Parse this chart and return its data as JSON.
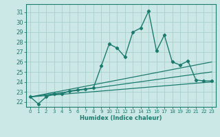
{
  "xlabel": "Humidex (Indice chaleur)",
  "bg_color": "#cce8e6",
  "grid_color": "#aacfcc",
  "line_color": "#1a7a6e",
  "xlim": [
    -0.5,
    23.5
  ],
  "ylim": [
    21.5,
    31.8
  ],
  "xticks": [
    0,
    1,
    2,
    3,
    4,
    5,
    6,
    7,
    8,
    9,
    10,
    11,
    12,
    13,
    14,
    15,
    16,
    17,
    18,
    19,
    20,
    21,
    22,
    23
  ],
  "yticks": [
    22,
    23,
    24,
    25,
    26,
    27,
    28,
    29,
    30,
    31
  ],
  "line1_x": [
    0,
    1,
    2,
    3,
    4,
    5,
    6,
    7,
    8,
    9,
    10,
    11,
    12,
    13,
    14,
    15,
    16,
    17,
    18,
    19,
    20,
    21,
    22,
    23
  ],
  "line1_y": [
    22.5,
    21.8,
    22.5,
    22.8,
    22.8,
    23.1,
    23.2,
    23.3,
    23.4,
    25.6,
    27.8,
    27.4,
    26.5,
    29.0,
    29.4,
    31.1,
    27.1,
    28.7,
    26.0,
    25.7,
    26.1,
    24.2,
    24.1,
    24.1
  ],
  "line2_x": [
    0,
    23
  ],
  "line2_y": [
    22.5,
    26.0
  ],
  "line3_x": [
    0,
    23
  ],
  "line3_y": [
    22.5,
    25.0
  ],
  "line4_x": [
    0,
    23
  ],
  "line4_y": [
    22.5,
    24.0
  ]
}
